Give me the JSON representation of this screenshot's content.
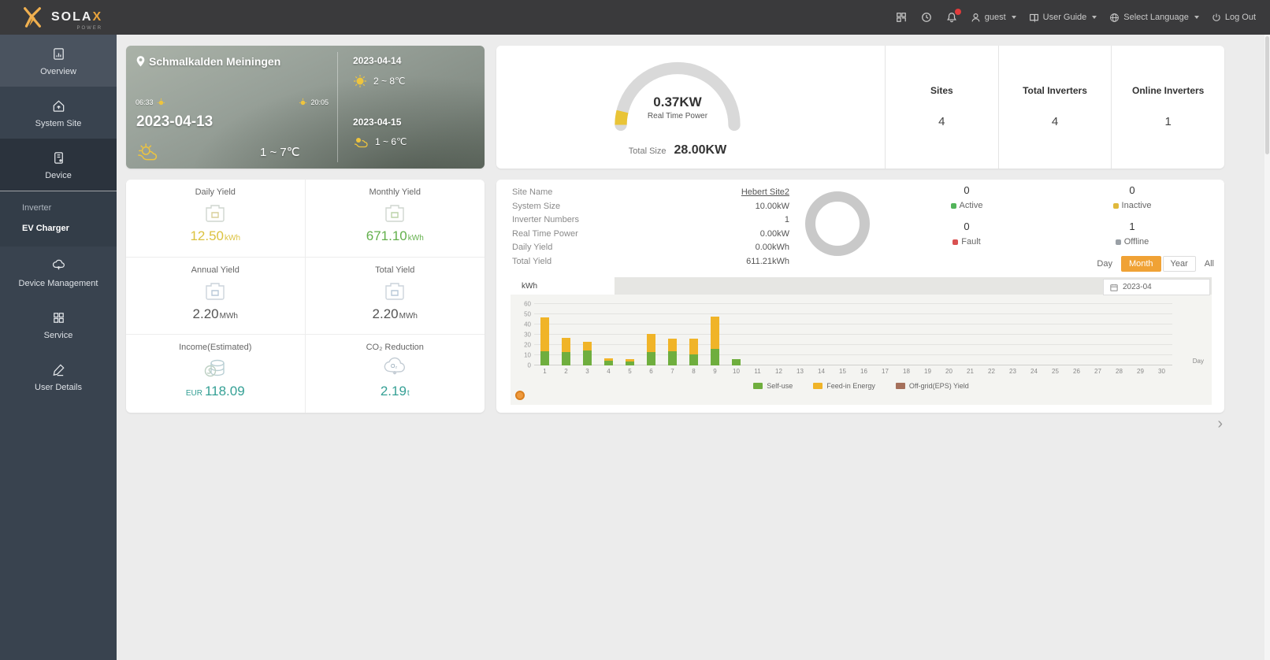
{
  "topbar": {
    "brand_main": "SOLA",
    "brand_x": "X",
    "brand_sub": "POWER",
    "user": "guest",
    "user_guide": "User Guide",
    "select_language": "Select Language",
    "logout": "Log Out",
    "icons": [
      {
        "name": "scan-icon"
      },
      {
        "name": "clock-icon"
      },
      {
        "name": "notification-bell-icon",
        "badge": true
      }
    ]
  },
  "sidebar": {
    "items": [
      {
        "label": "Overview",
        "active": true
      },
      {
        "label": "System Site"
      },
      {
        "label": "Device",
        "expanded": true,
        "children": [
          {
            "label": "Inverter"
          },
          {
            "label": "EV Charger",
            "active": true
          }
        ]
      },
      {
        "label": "Device Management"
      },
      {
        "label": "Service"
      },
      {
        "label": "User Details"
      }
    ]
  },
  "weather": {
    "location": "Schmalkalden Meiningen",
    "sunrise": "06:33",
    "sunset": "20:05",
    "date": "2023-04-13",
    "temp": "1 ~ 7℃",
    "forecast": [
      {
        "date": "2023-04-14",
        "temp": "2 ~ 8℃"
      },
      {
        "date": "2023-04-15",
        "temp": "1 ~ 6℃"
      }
    ]
  },
  "summary": {
    "real_time_power": "0.37KW",
    "real_time_power_label": "Real Time Power",
    "total_size_label": "Total Size",
    "total_size": "28.00KW",
    "gauge_color": "#e9c437",
    "gauge_track": "#d9d9d9",
    "stats": [
      {
        "label": "Sites",
        "value": "4"
      },
      {
        "label": "Total Inverters",
        "value": "4"
      },
      {
        "label": "Online Inverters",
        "value": "1"
      }
    ]
  },
  "yields": {
    "cells": [
      {
        "label": "Daily Yield",
        "value": "12.50",
        "unit": "kWh",
        "color": "#dcc23f"
      },
      {
        "label": "Monthly Yield",
        "value": "671.10",
        "unit": "kWh",
        "color": "#63b04c"
      },
      {
        "label": "Annual Yield",
        "value": "2.20",
        "unit": "MWh",
        "color": "#555555"
      },
      {
        "label": "Total Yield",
        "value": "2.20",
        "unit": "MWh",
        "color": "#555555"
      },
      {
        "label": "Income(Estimated)",
        "prefix": "EUR",
        "value": "118.09",
        "unit": "",
        "color": "#35a095"
      },
      {
        "label": "CO₂ Reduction",
        "value": "2.19",
        "unit": "t",
        "color": "#35a095"
      }
    ]
  },
  "site_panel": {
    "info": [
      {
        "label": "Site Name",
        "value": "Hebert Site2",
        "link": true
      },
      {
        "label": "System Size",
        "value": "10.00kW"
      },
      {
        "label": "Inverter Numbers",
        "value": "1"
      },
      {
        "label": "Real Time Power",
        "value": "0.00kW"
      },
      {
        "label": "Daily Yield",
        "value": "0.00kWh"
      },
      {
        "label": "Total Yield",
        "value": "611.21kWh"
      }
    ],
    "statuses": [
      {
        "label": "Active",
        "count": "0",
        "color": "#52b45a"
      },
      {
        "label": "Inactive",
        "count": "0",
        "color": "#e0b93c"
      },
      {
        "label": "Fault",
        "count": "0",
        "color": "#d95151"
      },
      {
        "label": "Offline",
        "count": "1",
        "color": "#9aa0a6"
      }
    ],
    "range_buttons": [
      "Day",
      "Month",
      "Year",
      "All"
    ],
    "active_range": "Month",
    "date": "2023-04",
    "accent": "#f0a235"
  },
  "chart_data": {
    "type": "bar",
    "stacked": true,
    "unit_tab": "kWh",
    "xlabel": "Day",
    "x": [
      1,
      2,
      3,
      4,
      5,
      6,
      7,
      8,
      9,
      10,
      11,
      12,
      13,
      14,
      15,
      16,
      17,
      18,
      19,
      20,
      21,
      22,
      23,
      24,
      25,
      26,
      27,
      28,
      29,
      30
    ],
    "ylim": [
      0,
      60
    ],
    "yticks": [
      0,
      10,
      20,
      30,
      40,
      50,
      60
    ],
    "grid": true,
    "legend_position": "bottom",
    "series": [
      {
        "name": "Self-use",
        "color": "#6fae3e",
        "values": [
          14,
          13,
          15,
          5,
          4,
          13,
          14,
          11,
          16,
          6,
          0,
          0,
          0,
          0,
          0,
          0,
          0,
          0,
          0,
          0,
          0,
          0,
          0,
          0,
          0,
          0,
          0,
          0,
          0,
          0
        ]
      },
      {
        "name": "Feed-in Energy",
        "color": "#f0b428",
        "values": [
          33,
          14,
          8,
          2,
          2,
          18,
          12,
          15,
          32,
          0,
          0,
          0,
          0,
          0,
          0,
          0,
          0,
          0,
          0,
          0,
          0,
          0,
          0,
          0,
          0,
          0,
          0,
          0,
          0,
          0
        ]
      },
      {
        "name": "Off-grid(EPS) Yield",
        "color": "#a5705b",
        "values": [
          0,
          0,
          0,
          0,
          0,
          0,
          0,
          0,
          0,
          0,
          0,
          0,
          0,
          0,
          0,
          0,
          0,
          0,
          0,
          0,
          0,
          0,
          0,
          0,
          0,
          0,
          0,
          0,
          0,
          0
        ]
      }
    ]
  }
}
